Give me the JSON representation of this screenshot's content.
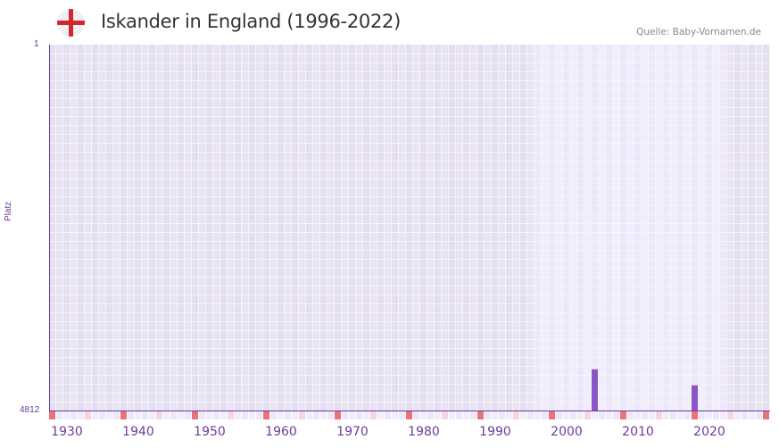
{
  "header": {
    "title": "Iskander in England (1996-2022)",
    "source": "Quelle: Baby-Vornamen.de",
    "flag_icon": "england-flag"
  },
  "axes": {
    "y_title": "Platz",
    "y_top_label": "1",
    "y_bottom_label": "4812"
  },
  "colors": {
    "bar": "#8b55c6",
    "axis": "#6a3d9a",
    "decade_marker": "#e8737c",
    "half_decade_marker": "#f5d5df",
    "bg_out_of_range": "#e3def0",
    "bg_in_range": "#ece7fa",
    "grid_line": "#f5f3fb"
  },
  "chart_data": {
    "type": "bar",
    "title": "Iskander in England (1996-2022)",
    "xlabel": "",
    "ylabel": "Platz",
    "y_inverted": true,
    "ylim": [
      4812,
      1
    ],
    "xlim": [
      1928,
      2028
    ],
    "data_range": [
      1996,
      2022
    ],
    "x_ticks": [
      1930,
      1940,
      1950,
      1960,
      1970,
      1980,
      1990,
      2000,
      2010,
      2020
    ],
    "x": [
      2004,
      2018
    ],
    "values": [
      4270,
      4480
    ],
    "grid": true,
    "legend": null
  }
}
